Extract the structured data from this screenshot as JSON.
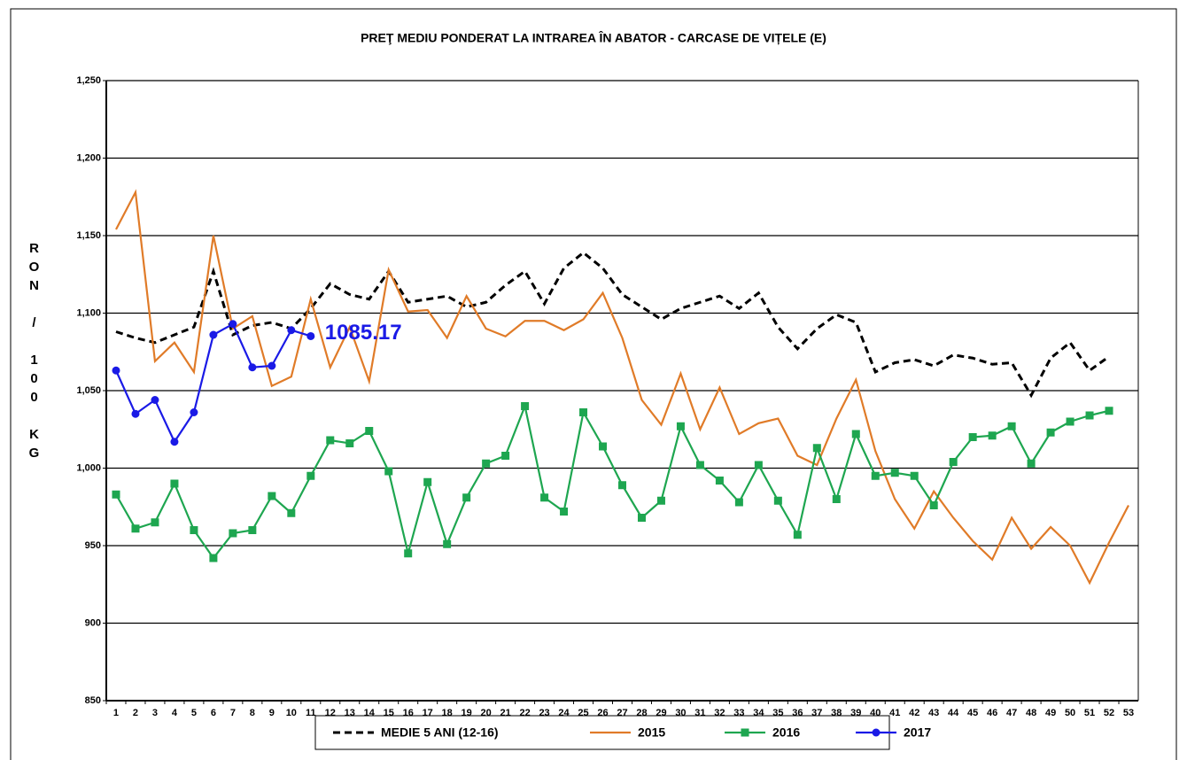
{
  "chart_data": {
    "type": "line",
    "title": "PREŢ MEDIU PONDERAT LA INTRAREA ÎN ABATOR - CARCASE DE VIȚELE (E)",
    "ylabel": "RON / 100 KG",
    "categories": [
      "1",
      "2",
      "3",
      "4",
      "5",
      "6",
      "7",
      "8",
      "9",
      "10",
      "11",
      "12",
      "13",
      "14",
      "15",
      "16",
      "17",
      "18",
      "19",
      "20",
      "21",
      "22",
      "23",
      "24",
      "25",
      "26",
      "27",
      "28",
      "29",
      "30",
      "31",
      "32",
      "33",
      "34",
      "35",
      "36",
      "37",
      "38",
      "39",
      "40",
      "41",
      "42",
      "43",
      "44",
      "45",
      "46",
      "47",
      "48",
      "49",
      "50",
      "51",
      "52",
      "53"
    ],
    "ylim": [
      850,
      1250
    ],
    "yticks": [
      {
        "value": 850,
        "label": "850"
      },
      {
        "value": 900,
        "label": "900"
      },
      {
        "value": 950,
        "label": "950"
      },
      {
        "value": 1000,
        "label": "1,000"
      },
      {
        "value": 1050,
        "label": "1,050"
      },
      {
        "value": 1100,
        "label": "1,100"
      },
      {
        "value": 1150,
        "label": "1,150"
      },
      {
        "value": 1200,
        "label": "1,200"
      },
      {
        "value": 1250,
        "label": "1,250"
      }
    ],
    "grid": true,
    "legend": "bottom",
    "series": [
      {
        "name": "MEDIE 5 ANI (12-16)",
        "color": "#000000",
        "dash": true,
        "marker": null,
        "values": [
          1088,
          1084,
          1081,
          1086,
          1091,
          1127,
          1086,
          1092,
          1094,
          1090,
          1103,
          1119,
          1112,
          1109,
          1127,
          1107,
          1109,
          1111,
          1104,
          1107,
          1118,
          1127,
          1106,
          1129,
          1139,
          1129,
          1112,
          1104,
          1096,
          1103,
          1107,
          1111,
          1103,
          1113,
          1091,
          1077,
          1090,
          1099,
          1094,
          1062,
          1068,
          1070,
          1066,
          1073,
          1071,
          1067,
          1068,
          1047,
          1071,
          1081,
          1063,
          1072,
          null
        ]
      },
      {
        "name": "2015",
        "color": "#e07b28",
        "dash": false,
        "marker": null,
        "values": [
          1154,
          1178,
          1069,
          1081,
          1062,
          1150,
          1090,
          1098,
          1053,
          1059,
          1109,
          1065,
          1091,
          1056,
          1128,
          1101,
          1102,
          1084,
          1111,
          1090,
          1085,
          1095,
          1095,
          1089,
          1096,
          1113,
          1084,
          1044,
          1028,
          1061,
          1025,
          1052,
          1022,
          1029,
          1032,
          1008,
          1002,
          1032,
          1057,
          1011,
          980,
          961,
          985,
          968,
          953,
          941,
          968,
          948,
          962,
          950,
          926,
          952,
          976
        ]
      },
      {
        "name": "2016",
        "color": "#1ea650",
        "dash": false,
        "marker": "square",
        "values": [
          983,
          961,
          965,
          990,
          960,
          942,
          958,
          960,
          982,
          971,
          995,
          1018,
          1016,
          1024,
          998,
          945,
          991,
          951,
          981,
          1003,
          1008,
          1040,
          981,
          972,
          1036,
          1014,
          989,
          968,
          979,
          1027,
          1002,
          992,
          978,
          1002,
          979,
          957,
          1013,
          980,
          1022,
          995,
          997,
          995,
          976,
          1004,
          1020,
          1021,
          1027,
          1003,
          1023,
          1030,
          1034,
          1037,
          null
        ]
      },
      {
        "name": "2017",
        "color": "#1a1ae6",
        "dash": false,
        "marker": "circle",
        "values": [
          1063,
          1035,
          1044,
          1017,
          1036,
          1086,
          1093,
          1065,
          1066,
          1089,
          1085.17,
          null,
          null,
          null,
          null,
          null,
          null,
          null,
          null,
          null,
          null,
          null,
          null,
          null,
          null,
          null,
          null,
          null,
          null,
          null,
          null,
          null,
          null,
          null,
          null,
          null,
          null,
          null,
          null,
          null,
          null,
          null,
          null,
          null,
          null,
          null,
          null,
          null,
          null,
          null,
          null,
          null,
          null
        ],
        "annotation": "1085.17"
      }
    ]
  }
}
